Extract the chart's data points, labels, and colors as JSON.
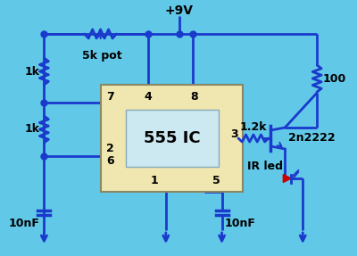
{
  "bg_color": "#62c8e8",
  "ic_color": "#f0e6b0",
  "ic_border": "#888855",
  "wire_color": "#1a3acc",
  "wire_lw": 2.0,
  "dot_color": "#1a3acc",
  "dot_size": 5,
  "led_color": "#cc0000",
  "ic_label": "555 IC",
  "ic_label_fontsize": 13,
  "pin_fontsize": 9,
  "comp_fontsize": 9,
  "vcc_label": "+9V",
  "r1_label": "5k pot",
  "r2_label": "1k",
  "r3_label": "1k",
  "r4_label": "100",
  "r5_label": "1.2k",
  "c1_label": "10nF",
  "c2_label": "10nF",
  "ir_label": "IR led",
  "tr_label": "2n2222"
}
